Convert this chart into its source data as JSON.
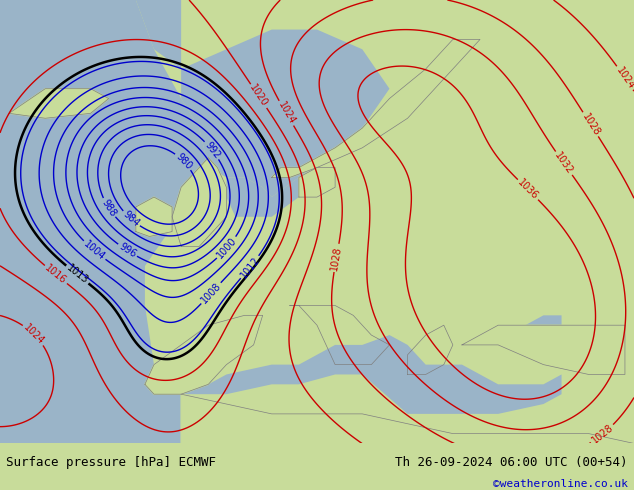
{
  "title_left": "Surface pressure [hPa] ECMWF",
  "title_right": "Th 26-09-2024 06:00 UTC (00+54)",
  "credit": "©weatheronline.co.uk",
  "land_color": "#c8dc9a",
  "sea_color": "#9ab4c8",
  "footer_bg": "#ffffff",
  "credit_color": "#0000cc",
  "low_color": "#0000cc",
  "high_color": "#cc0000",
  "iso_1013_color": "#000000",
  "figsize": [
    6.34,
    4.9
  ],
  "dpi": 100,
  "lon_min": -25,
  "lon_max": 45,
  "lat_min": 30,
  "lat_max": 75,
  "contour_levels": [
    980,
    984,
    988,
    992,
    996,
    1000,
    1004,
    1008,
    1012,
    1013,
    1016,
    1020,
    1024,
    1028,
    1032,
    1036
  ],
  "label_fontsize": 7,
  "contour_lw": 1.0,
  "iso1013_lw": 1.8
}
